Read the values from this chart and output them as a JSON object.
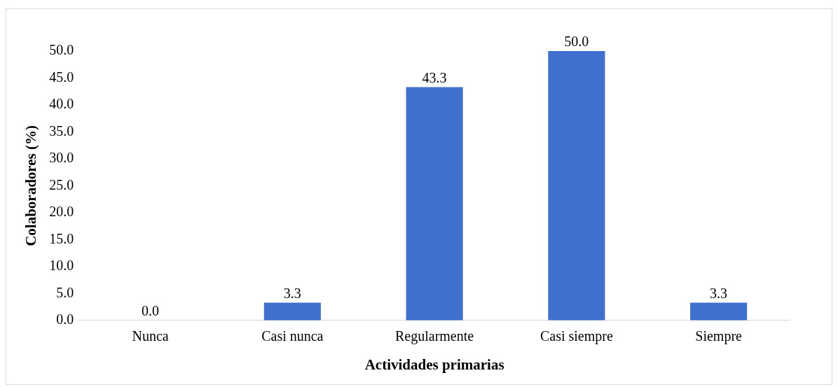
{
  "chart_data": {
    "type": "bar",
    "xlabel": "Actividades primarias",
    "ylabel": "Colaboradores (%)",
    "categories": [
      "Nunca",
      "Casi nunca",
      "Regularmente",
      "Casi siempre",
      "Siempre"
    ],
    "values": [
      0.0,
      3.3,
      43.3,
      50.0,
      3.3
    ],
    "value_labels": [
      "0.0",
      "3.3",
      "43.3",
      "50.0",
      "3.3"
    ],
    "color": "#3f6fcf",
    "ylim": [
      0,
      50
    ],
    "yticks": [
      {
        "value": 0,
        "label": "0.0"
      },
      {
        "value": 5,
        "label": "5.0"
      },
      {
        "value": 10,
        "label": "10.0"
      },
      {
        "value": 15,
        "label": "15.0"
      },
      {
        "value": 20,
        "label": "20.0"
      },
      {
        "value": 25,
        "label": "25.0"
      },
      {
        "value": 30,
        "label": "30.0"
      },
      {
        "value": 35,
        "label": "35.0"
      },
      {
        "value": 40,
        "label": "40.0"
      },
      {
        "value": 45,
        "label": "45.0"
      },
      {
        "value": 50,
        "label": "50.0"
      }
    ],
    "grid": false,
    "legend": false
  }
}
